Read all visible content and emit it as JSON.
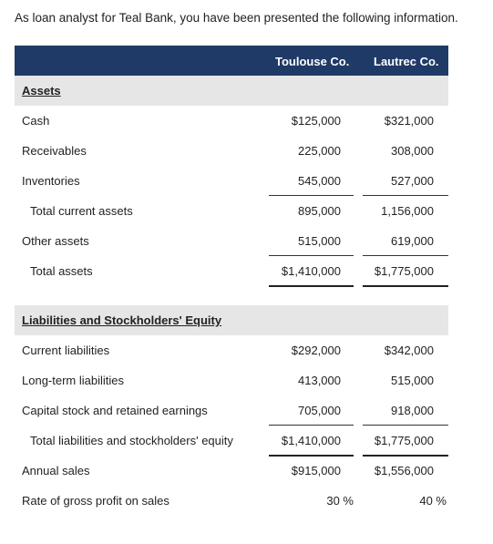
{
  "intro": "As loan analyst for Teal Bank, you have been presented the following information.",
  "columns": [
    "Toulouse Co.",
    "Lautrec Co."
  ],
  "assets": {
    "title": "Assets",
    "rows": [
      {
        "label": "Cash",
        "c1": "$125,000",
        "c2": "$321,000"
      },
      {
        "label": "Receivables",
        "c1": "225,000",
        "c2": "308,000"
      },
      {
        "label": "Inventories",
        "c1": "545,000",
        "c2": "527,000"
      },
      {
        "label": "Total current assets",
        "c1": "895,000",
        "c2": "1,156,000"
      },
      {
        "label": "Other assets",
        "c1": "515,000",
        "c2": "619,000"
      },
      {
        "label": "Total assets",
        "c1": "$1,410,000",
        "c2": "$1,775,000"
      }
    ]
  },
  "liabilities": {
    "title": "Liabilities and Stockholders' Equity",
    "rows": [
      {
        "label": "Current liabilities",
        "c1": "$292,000",
        "c2": "$342,000"
      },
      {
        "label": "Long-term liabilities",
        "c1": "413,000",
        "c2": "515,000"
      },
      {
        "label": "Capital stock and retained earnings",
        "c1": "705,000",
        "c2": "918,000"
      },
      {
        "label": "Total liabilities and stockholders' equity",
        "c1": "$1,410,000",
        "c2": "$1,775,000"
      }
    ]
  },
  "other": {
    "rows": [
      {
        "label": "Annual sales",
        "c1": "$915,000",
        "c2": "$1,556,000"
      },
      {
        "label": "Rate of gross profit on sales",
        "c1": "30 %",
        "c2": "40 %"
      }
    ]
  },
  "colors": {
    "header_bg": "#1f3a67",
    "section_bg": "#e6e6e6"
  }
}
